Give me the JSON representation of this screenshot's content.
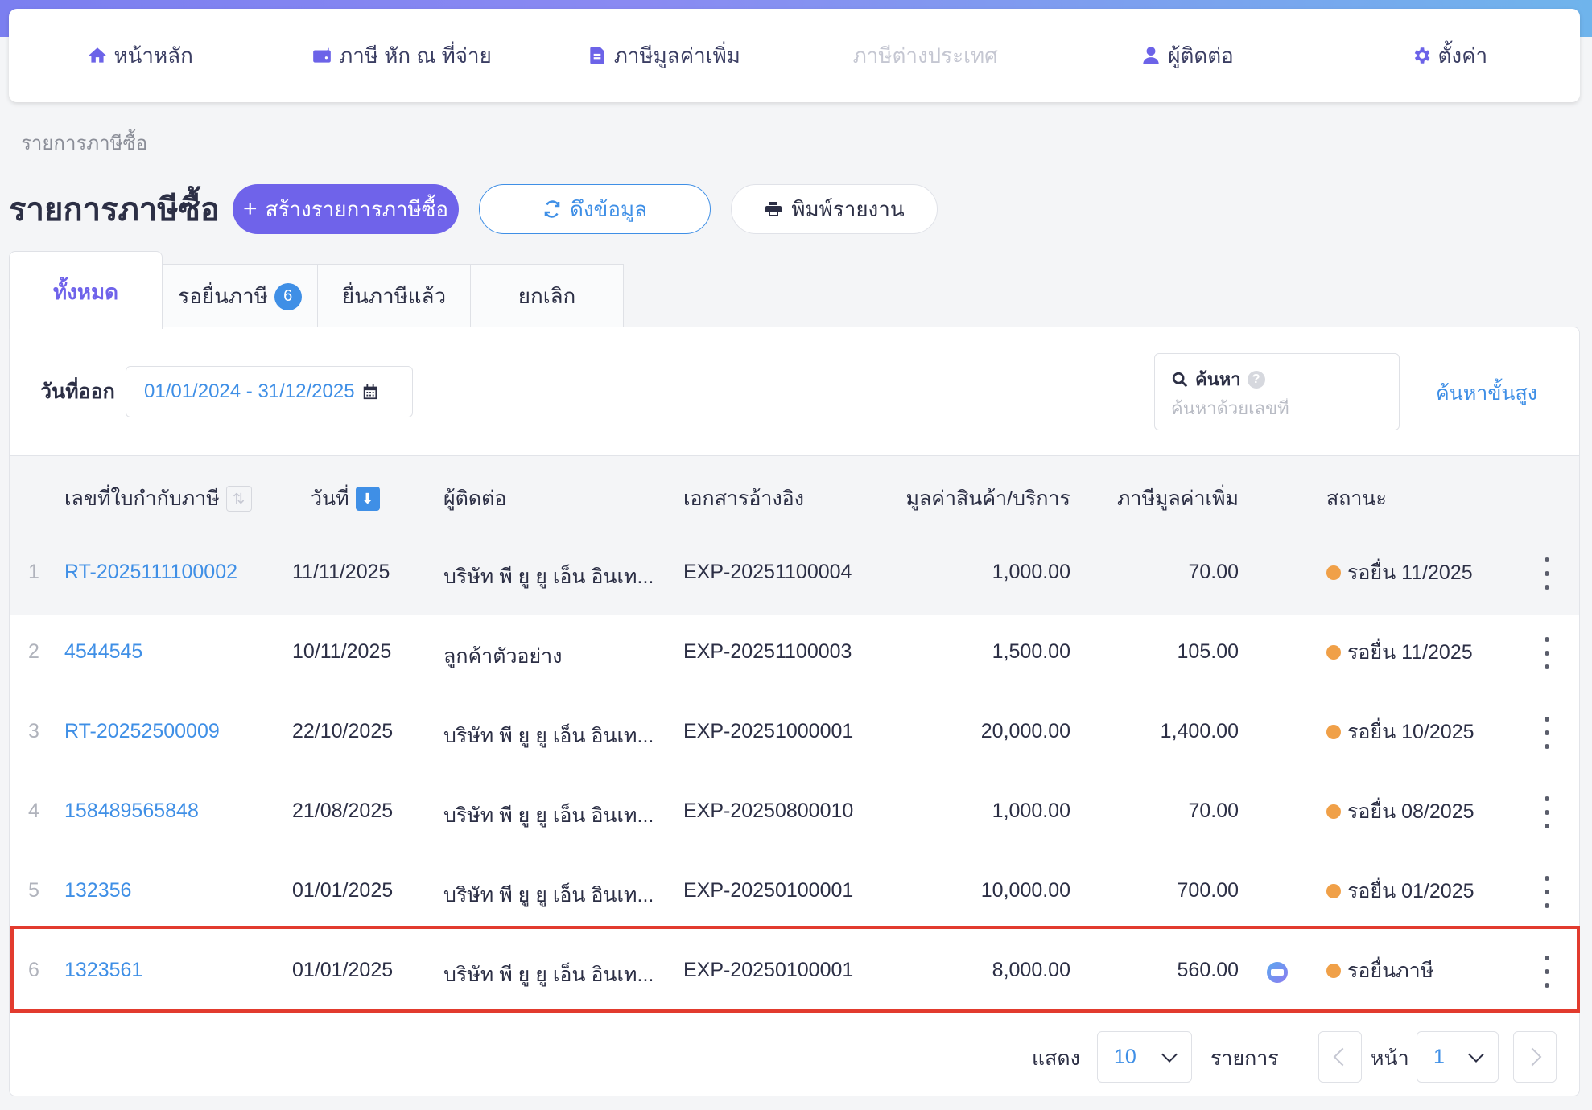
{
  "nav": {
    "home": "หน้าหลัก",
    "withholding": "ภาษี หัก ณ ที่จ่าย",
    "vat": "ภาษีมูลค่าเพิ่ม",
    "foreign": "ภาษีต่างประเทศ",
    "contacts": "ผู้ติดต่อ",
    "settings": "ตั้งค่า"
  },
  "breadcrumb": "รายการภาษีซื้อ",
  "page_title": "รายการภาษีซื้อ",
  "actions": {
    "create": "สร้างรายการภาษีซื้อ",
    "fetch": "ดึงข้อมูล",
    "print": "พิมพ์รายงาน"
  },
  "tabs": {
    "all": "ทั้งหมด",
    "pending": "รอยื่นภาษี",
    "pending_count": "6",
    "filed": "ยื่นภาษีแล้ว",
    "cancelled": "ยกเลิก"
  },
  "filter": {
    "date_label": "วันที่ออก",
    "date_range": "01/01/2024 - 31/12/2025",
    "search_label": "ค้นหา",
    "search_placeholder": "ค้นหาด้วยเลขที่",
    "advanced": "ค้นหาขั้นสูง"
  },
  "columns": {
    "invoice_no": "เลขที่ใบกำกับภาษี",
    "date": "วันที่",
    "contact": "ผู้ติดต่อ",
    "reference": "เอกสารอ้างอิง",
    "amount": "มูลค่าสินค้า/บริการ",
    "vat": "ภาษีมูลค่าเพิ่ม",
    "status": "สถานะ"
  },
  "rows": [
    {
      "num": "1",
      "invoice": "RT-2025111100002",
      "date": "11/11/2025",
      "contact": "บริษัท พี ยู ยู เอ็น อินเท...",
      "ref": "EXP-20251100004",
      "amount": "1,000.00",
      "vat": "70.00",
      "status": "รอยื่น 11/2025"
    },
    {
      "num": "2",
      "invoice": "4544545",
      "date": "10/11/2025",
      "contact": "ลูกค้าตัวอย่าง",
      "ref": "EXP-20251100003",
      "amount": "1,500.00",
      "vat": "105.00",
      "status": "รอยื่น 11/2025"
    },
    {
      "num": "3",
      "invoice": "RT-20252500009",
      "date": "22/10/2025",
      "contact": "บริษัท พี ยู ยู เอ็น อินเท...",
      "ref": "EXP-20251000001",
      "amount": "20,000.00",
      "vat": "1,400.00",
      "status": "รอยื่น 10/2025"
    },
    {
      "num": "4",
      "invoice": "158489565848",
      "date": "21/08/2025",
      "contact": "บริษัท พี ยู ยู เอ็น อินเท...",
      "ref": "EXP-20250800010",
      "amount": "1,000.00",
      "vat": "70.00",
      "status": "รอยื่น 08/2025"
    },
    {
      "num": "5",
      "invoice": "132356",
      "date": "01/01/2025",
      "contact": "บริษัท พี ยู ยู เอ็น อินเท...",
      "ref": "EXP-20250100001",
      "amount": "10,000.00",
      "vat": "700.00",
      "status": "รอยื่น 01/2025"
    },
    {
      "num": "6",
      "invoice": "1323561",
      "date": "01/01/2025",
      "contact": "บริษัท พี ยู ยู เอ็น อินเท...",
      "ref": "EXP-20250100001",
      "amount": "8,000.00",
      "vat": "560.00",
      "status": "รอยื่นภาษี"
    }
  ],
  "pagination": {
    "show_label": "แสดง",
    "page_size": "10",
    "items_label": "รายการ",
    "page_label": "หน้า",
    "page": "1"
  },
  "colors": {
    "primary": "#6f63ea",
    "link": "#3f8fe6",
    "status_pending": "#f0a048",
    "highlight": "#e23b2e"
  }
}
